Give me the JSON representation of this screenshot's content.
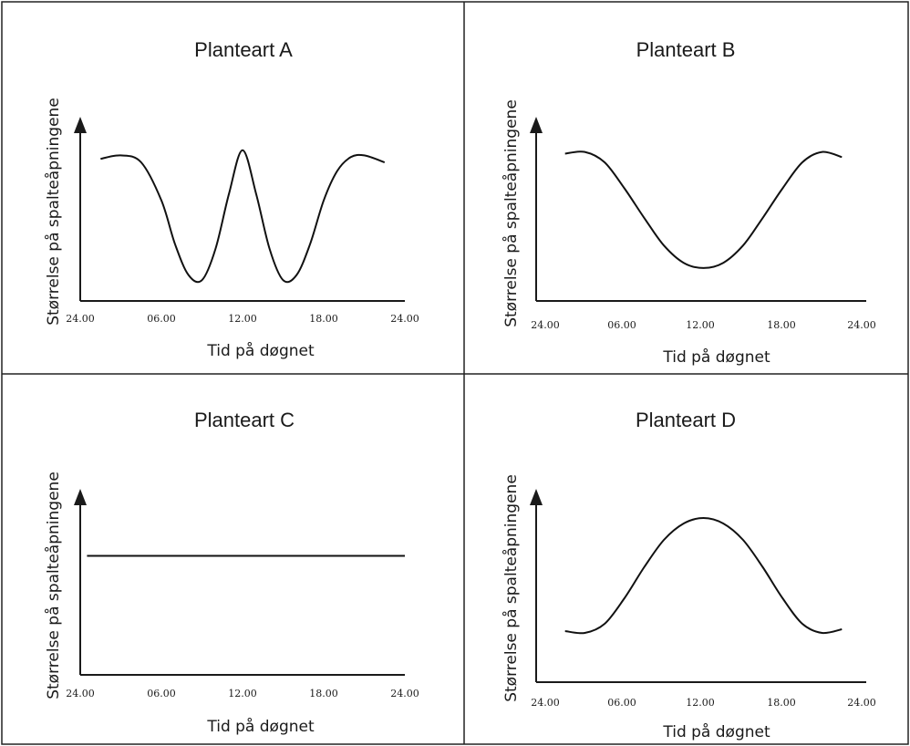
{
  "chart_data": [
    {
      "type": "line",
      "title": "Planteart A",
      "xlabel": "Tid på døgnet",
      "ylabel": "Størrelse på spalteåpningene",
      "x_ticks": [
        "24.00",
        "06.00",
        "12.00",
        "18.00",
        "24.00"
      ],
      "xlim": [
        0,
        24
      ],
      "ylim": [
        0,
        1
      ],
      "series": [
        {
          "x": [
            1.5,
            3,
            4.5,
            6,
            7,
            8,
            9,
            10,
            11,
            12,
            13,
            14,
            15,
            16,
            17,
            18,
            19,
            20,
            21,
            22.5
          ],
          "y": [
            0.82,
            0.84,
            0.8,
            0.58,
            0.33,
            0.15,
            0.12,
            0.3,
            0.62,
            0.87,
            0.62,
            0.3,
            0.12,
            0.15,
            0.33,
            0.58,
            0.75,
            0.83,
            0.84,
            0.8
          ]
        }
      ]
    },
    {
      "type": "line",
      "title": "Planteart B",
      "xlabel": "Tid på døgnet",
      "ylabel": "Størrelse på spalteåpningene",
      "x_ticks": [
        "24.00",
        "06.00",
        "12.00",
        "18.00",
        "24.00"
      ],
      "xlim": [
        0,
        24
      ],
      "ylim": [
        0,
        1
      ],
      "series": [
        {
          "x": [
            1.5,
            3,
            4.5,
            6,
            7.5,
            9,
            10.5,
            12,
            13.5,
            15,
            16.5,
            18,
            19.5,
            21,
            22.5
          ],
          "y": [
            0.85,
            0.86,
            0.8,
            0.65,
            0.48,
            0.32,
            0.22,
            0.19,
            0.22,
            0.32,
            0.48,
            0.65,
            0.8,
            0.86,
            0.83
          ]
        }
      ]
    },
    {
      "type": "line",
      "title": "Planteart C",
      "xlabel": "Tid på døgnet",
      "ylabel": "Størrelse på spalteåpningene",
      "x_ticks": [
        "24.00",
        "06.00",
        "12.00",
        "18.00",
        "24.00"
      ],
      "xlim": [
        0,
        24
      ],
      "ylim": [
        0,
        1
      ],
      "series": [
        {
          "x": [
            0.5,
            24
          ],
          "y": [
            0.68,
            0.68
          ]
        }
      ]
    },
    {
      "type": "line",
      "title": "Planteart D",
      "xlabel": "Tid på døgnet",
      "ylabel": "Størrelse på spalteåpningene",
      "x_ticks": [
        "24.00",
        "06.00",
        "12.00",
        "18.00",
        "24.00"
      ],
      "xlim": [
        0,
        24
      ],
      "ylim": [
        0,
        1
      ],
      "series": [
        {
          "x": [
            1.5,
            3,
            4.5,
            6,
            7.5,
            9,
            10.5,
            12,
            13.5,
            15,
            16.5,
            18,
            19.5,
            21,
            22.5
          ],
          "y": [
            0.28,
            0.27,
            0.32,
            0.46,
            0.63,
            0.78,
            0.87,
            0.9,
            0.87,
            0.78,
            0.63,
            0.46,
            0.32,
            0.27,
            0.29
          ]
        }
      ]
    }
  ]
}
